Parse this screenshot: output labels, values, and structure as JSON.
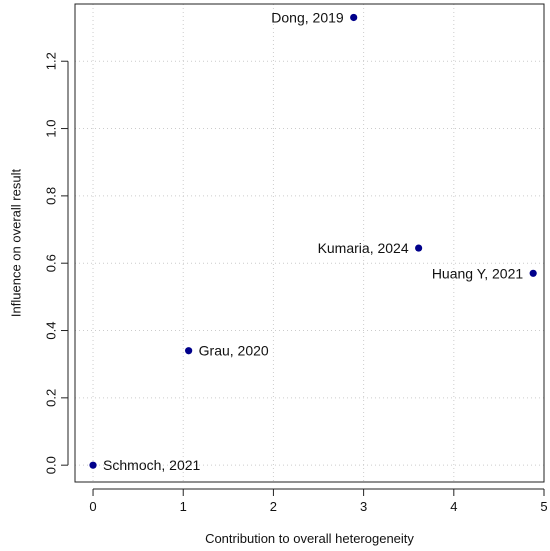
{
  "chart_data": {
    "type": "scatter",
    "title": "",
    "xlabel": "Contribution to overall heterogeneity",
    "ylabel": "Influence on overall result",
    "xlim": [
      -0.2,
      5.0
    ],
    "ylim": [
      -0.05,
      1.37
    ],
    "x_ticks": [
      0,
      1,
      2,
      3,
      4,
      5
    ],
    "y_ticks": [
      0.0,
      0.2,
      0.4,
      0.6,
      0.8,
      1.0,
      1.2
    ],
    "x_tick_labels": [
      "0",
      "1",
      "2",
      "3",
      "4",
      "5"
    ],
    "y_tick_labels": [
      "0.0",
      "0.2",
      "0.4",
      "0.6",
      "0.8",
      "1.0",
      "1.2"
    ],
    "grid": true,
    "point_color": "#00008B",
    "points": [
      {
        "label": "Dong, 2019",
        "x": 2.89,
        "y": 1.33,
        "label_side": "left"
      },
      {
        "label": "Kumaria, 2024",
        "x": 3.61,
        "y": 0.645,
        "label_side": "left"
      },
      {
        "label": "Huang Y, 2021",
        "x": 4.88,
        "y": 0.57,
        "label_side": "left"
      },
      {
        "label": "Grau, 2020",
        "x": 1.06,
        "y": 0.34,
        "label_side": "right"
      },
      {
        "label": "Schmoch, 2021",
        "x": 0.0,
        "y": 0.0,
        "label_side": "right"
      }
    ]
  }
}
